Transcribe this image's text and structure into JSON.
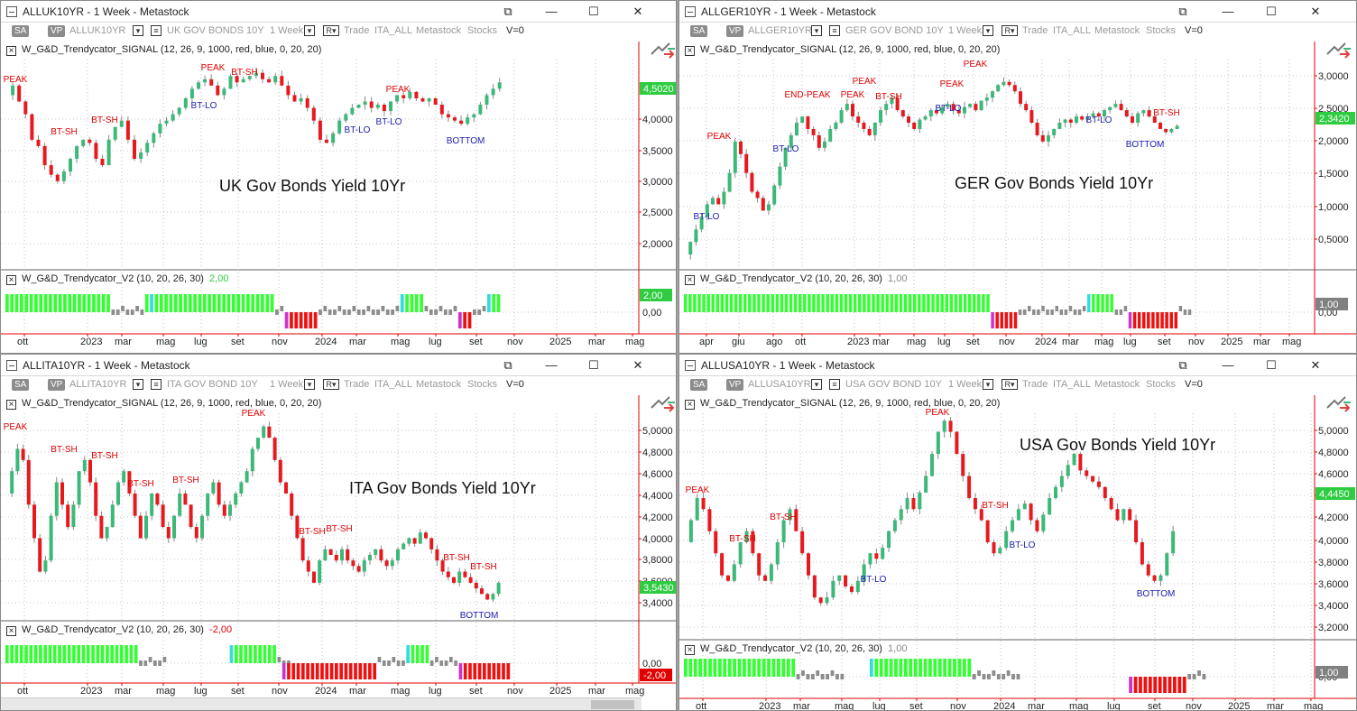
{
  "panels": [
    {
      "id": "uk",
      "title": "ALLUK10YR - 1 Week - Metastock",
      "toolbar": {
        "sa": "SA",
        "vp": "VP",
        "symbol": "ALLUK10YR",
        "desc": "UK GOV BONDS 10Y",
        "period": "1 Week",
        "rv": "R▾",
        "trade": "Trade",
        "list": "ITA_ALL",
        "source": "Metastock",
        "type": "Stocks",
        "v": "V=0"
      },
      "signal": {
        "name": "W_G&D_Trendycator_SIGNAL",
        "params": "(12, 26, 9, 1000, red, blue, 0, 20, 20)"
      },
      "chart_label": "UK Gov Bonds Yield 10Yr",
      "price_axis": [
        "4,0000",
        "3,5000",
        "3,0000",
        "2,5000",
        "2,0000"
      ],
      "last_price": "4,5020",
      "annotations": [
        {
          "text": "PEAK",
          "kind": "peak"
        },
        {
          "text": "BT-SH",
          "kind": "peak"
        },
        {
          "text": "BT-SH",
          "kind": "peak"
        },
        {
          "text": "PEAK",
          "kind": "peak"
        },
        {
          "text": "BT-SH",
          "kind": "peak"
        },
        {
          "text": "BT-LO",
          "kind": "low"
        },
        {
          "text": "PEAK",
          "kind": "peak"
        },
        {
          "text": "BT-LO",
          "kind": "low"
        },
        {
          "text": "BT-LO",
          "kind": "low"
        },
        {
          "text": "BOTTOM",
          "kind": "low"
        }
      ],
      "indicator": {
        "name": "W_G&D_Trendycator_V2",
        "params": "(10, 20, 26, 30)",
        "value": "2,00",
        "zero": "0,00",
        "badge": "2,00"
      },
      "months": [
        "ott",
        "2023",
        "mar",
        "mag",
        "lug",
        "set",
        "nov",
        "2024",
        "mar",
        "mag",
        "lug",
        "set",
        "nov",
        "2025",
        "mar",
        "mag"
      ]
    },
    {
      "id": "ger",
      "title": "ALLGER10YR - 1 Week - Metastock",
      "toolbar": {
        "sa": "SA",
        "vp": "VP",
        "symbol": "ALLGER10YR",
        "desc": "GER GOV BOND 10Y",
        "period": "1 Week",
        "rv": "R▾",
        "trade": "Trade",
        "list": "ITA_ALL",
        "source": "Metastock",
        "type": "Stocks",
        "v": "V=0"
      },
      "signal": {
        "name": "W_G&D_Trendycator_SIGNAL",
        "params": "(12, 26, 9, 1000, red, blue, 0, 20, 20)"
      },
      "chart_label": "GER Gov Bonds Yield 10Yr",
      "price_axis": [
        "3,0000",
        "2,5000",
        "2,0000",
        "1,5000",
        "1,0000",
        "0,5000"
      ],
      "last_price": "2,3420",
      "annotations": [
        {
          "text": "PEAK",
          "kind": "peak"
        },
        {
          "text": "END-PEAK",
          "kind": "peak"
        },
        {
          "text": "PEAK",
          "kind": "peak"
        },
        {
          "text": "PEAK",
          "kind": "peak"
        },
        {
          "text": "BT-SH",
          "kind": "peak"
        },
        {
          "text": "PEAK",
          "kind": "peak"
        },
        {
          "text": "PEAK",
          "kind": "peak"
        },
        {
          "text": "BT-SH",
          "kind": "peak"
        },
        {
          "text": "BT-LO",
          "kind": "low"
        },
        {
          "text": "BT-LO",
          "kind": "low"
        },
        {
          "text": "BT-LO",
          "kind": "low"
        },
        {
          "text": "BT-LO",
          "kind": "low"
        },
        {
          "text": "BOTTOM",
          "kind": "low"
        }
      ],
      "indicator": {
        "name": "W_G&D_Trendycator_V2",
        "params": "(10, 20, 26, 30)",
        "value": "1,00",
        "zero": "0,00",
        "badge": "1,00"
      },
      "months": [
        "apr",
        "giu",
        "ago",
        "ott",
        "2023",
        "mar",
        "mag",
        "lug",
        "set",
        "nov",
        "2024",
        "mar",
        "mag",
        "lug",
        "set",
        "nov",
        "2025",
        "mar",
        "mag"
      ]
    },
    {
      "id": "ita",
      "title": "ALLITA10YR - 1 Week - Metastock",
      "toolbar": {
        "sa": "SA",
        "vp": "VP",
        "symbol": "ALLITA10YR",
        "desc": "ITA GOV BOND 10Y",
        "period": "1 Week",
        "rv": "R▾",
        "trade": "Trade",
        "list": "ITA_ALL",
        "source": "Metastock",
        "type": "Stocks",
        "v": "V=0"
      },
      "signal": {
        "name": "W_G&D_Trendycator_SIGNAL",
        "params": "(12, 26, 9, 1000, red, blue, 0, 20, 20)"
      },
      "chart_label": "ITA Gov Bonds Yield 10Yr",
      "price_axis": [
        "5,0000",
        "4,8000",
        "4,6000",
        "4,4000",
        "4,2000",
        "4,0000",
        "3,8000",
        "3,6000",
        "3,4000"
      ],
      "last_price": "3,5430",
      "annotations": [
        {
          "text": "PEAK",
          "kind": "peak"
        },
        {
          "text": "BT-SH",
          "kind": "peak"
        },
        {
          "text": "BT-SH",
          "kind": "peak"
        },
        {
          "text": "BT-SH",
          "kind": "peak"
        },
        {
          "text": "BT-SH",
          "kind": "peak"
        },
        {
          "text": "PEAK",
          "kind": "peak"
        },
        {
          "text": "BT-SH",
          "kind": "peak"
        },
        {
          "text": "BT-SH",
          "kind": "peak"
        },
        {
          "text": "BT-SH",
          "kind": "peak"
        },
        {
          "text": "BT-SH",
          "kind": "peak"
        },
        {
          "text": "BOTTOM",
          "kind": "low"
        }
      ],
      "indicator": {
        "name": "W_G&D_Trendycator_V2",
        "params": "(10, 20, 26, 30)",
        "value": "-2,00",
        "zero": "0,00",
        "badge": "-2,00"
      },
      "months": [
        "ott",
        "2023",
        "mar",
        "mag",
        "lug",
        "set",
        "nov",
        "2024",
        "mar",
        "mag",
        "lug",
        "set",
        "nov",
        "2025",
        "mar",
        "mag"
      ]
    },
    {
      "id": "usa",
      "title": "ALLUSA10YR - 1 Week - Metastock",
      "toolbar": {
        "sa": "SA",
        "vp": "VP",
        "symbol": "ALLUSA10YR",
        "desc": "USA GOV BOND 10Y",
        "period": "1 Week",
        "rv": "R▾",
        "trade": "Trade",
        "list": "ITA_ALL",
        "source": "Metastock",
        "type": "Stocks",
        "v": "V=0"
      },
      "signal": {
        "name": "W_G&D_Trendycator_SIGNAL",
        "params": "(12, 26, 9, 1000, red, blue, 0, 20, 20)"
      },
      "chart_label": "USA Gov Bonds Yield 10Yr",
      "price_axis": [
        "5,0000",
        "4,8000",
        "4,6000",
        "4,4000",
        "4,2000",
        "4,0000",
        "3,8000",
        "3,6000",
        "3,4000",
        "3,2000"
      ],
      "last_price": "4,4450",
      "annotations": [
        {
          "text": "PEAK",
          "kind": "peak"
        },
        {
          "text": "PEAK",
          "kind": "peak"
        },
        {
          "text": "BT-SH",
          "kind": "peak"
        },
        {
          "text": "BT-SH",
          "kind": "peak"
        },
        {
          "text": "BT-SH",
          "kind": "peak"
        },
        {
          "text": "BT-LO",
          "kind": "low"
        },
        {
          "text": "BT-LO",
          "kind": "low"
        },
        {
          "text": "BOTTOM",
          "kind": "low"
        }
      ],
      "indicator": {
        "name": "W_G&D_Trendycator_V2",
        "params": "(10, 20, 26, 30)",
        "value": "1,00",
        "zero": "0,00",
        "badge": "1,00"
      },
      "months": [
        "ott",
        "2023",
        "mar",
        "mag",
        "lug",
        "set",
        "nov",
        "2024",
        "mar",
        "mag",
        "lug",
        "set",
        "nov",
        "2025",
        "mar",
        "mag"
      ]
    }
  ],
  "colors": {
    "up": "#3cb878",
    "down": "#e8191e",
    "peak": "#e00000",
    "low": "#1a1ab0",
    "histo_green": "#33ff33",
    "histo_cyan": "#33dddd",
    "histo_gray": "#8c8c8c",
    "histo_red": "#ee1111",
    "histo_magenta": "#cc33cc",
    "price_badge": "#2ecc40",
    "neg_badge": "#e00000",
    "gray_badge": "#808080"
  },
  "window_controls": {
    "restore": "⧉",
    "minimize": "—",
    "maximize": "☐",
    "close": "✕"
  }
}
